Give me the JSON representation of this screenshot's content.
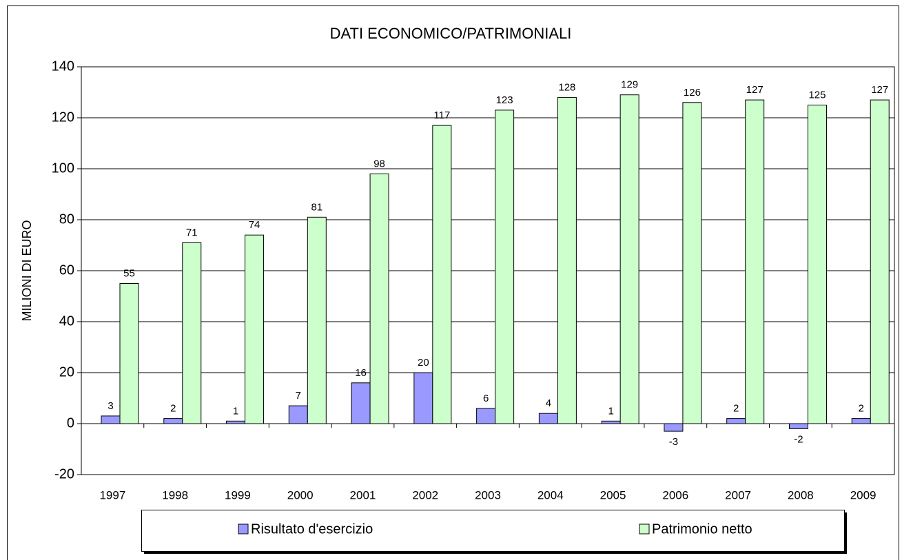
{
  "chart_data": {
    "type": "bar",
    "title": "DATI ECONOMICO/PATRIMONIALI",
    "y_label": "MILIONI DI EURO",
    "categories": [
      "1997",
      "1998",
      "1999",
      "2000",
      "2001",
      "2002",
      "2003",
      "2004",
      "2005",
      "2006",
      "2007",
      "2008",
      "2009"
    ],
    "series": [
      {
        "name": "Risultato d'esercizio",
        "color": "#9999ff",
        "values": [
          3,
          2,
          1,
          7,
          16,
          20,
          6,
          4,
          1,
          -3,
          2,
          -2,
          2
        ]
      },
      {
        "name": "Patrimonio netto",
        "color": "#ccffcc",
        "values": [
          55,
          71,
          74,
          81,
          98,
          117,
          123,
          128,
          129,
          126,
          127,
          125,
          127
        ]
      }
    ],
    "ylim": [
      -20,
      140
    ],
    "yticks": [
      -20,
      0,
      20,
      40,
      60,
      80,
      100,
      120,
      140
    ],
    "grid": true,
    "legend": "bottom"
  }
}
